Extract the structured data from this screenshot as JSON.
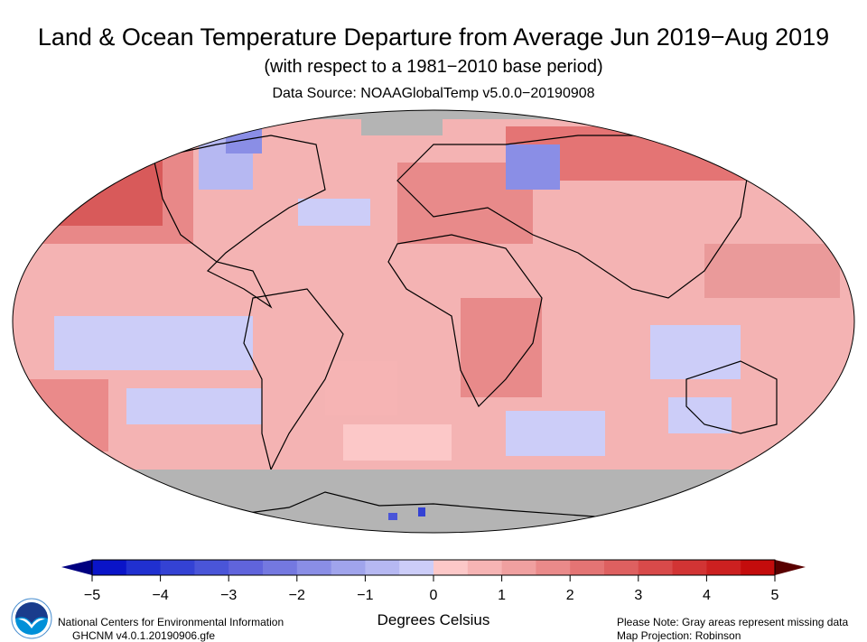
{
  "header": {
    "title": "Land & Ocean Temperature Departure from Average Jun 2019−Aug 2019",
    "subtitle": "(with respect to a 1981−2010 base period)",
    "source": "Data Source: NOAAGlobalTemp v5.0.0−20190908"
  },
  "map": {
    "projection": "Robinson",
    "missing_color": "#b4b4b4",
    "ocean_default_color": "#f4b3b3"
  },
  "colorbar": {
    "min": -5,
    "max": 5,
    "step": 0.5,
    "ticks": [
      "−5",
      "−4",
      "−3",
      "−2",
      "−1",
      "0",
      "1",
      "2",
      "3",
      "4",
      "5"
    ],
    "colors": [
      "#0a14c8",
      "#2030d0",
      "#3442d4",
      "#4a55d8",
      "#6064dc",
      "#7478e0",
      "#8a8ee6",
      "#a0a4ec",
      "#b6b8f2",
      "#cccdf8",
      "#fcc8c8",
      "#f6b4b4",
      "#f0a0a0",
      "#ea8a8a",
      "#e47474",
      "#de6060",
      "#d84a4a",
      "#d23434",
      "#cc2020",
      "#c40c0c"
    ],
    "low_arrow": "#000080",
    "high_arrow": "#5a0000",
    "label": "Degrees Celsius"
  },
  "footer": {
    "org": "National Centers for Environmental Information",
    "dataset": "GHCNM v4.0.1.20190906.gfe",
    "note": "Please Note: Gray areas represent missing data",
    "projection": "Map Projection: Robinson",
    "logo_text": "NOAA"
  }
}
